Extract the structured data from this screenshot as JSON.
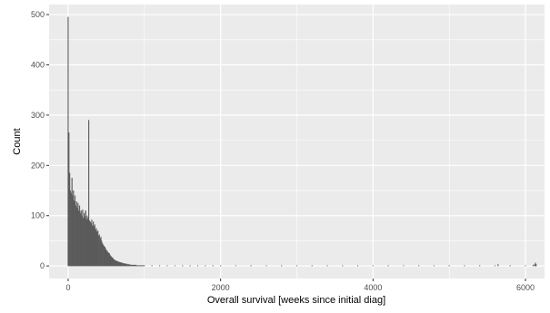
{
  "chart_data": {
    "type": "bar",
    "title": "",
    "xlabel": "Overall survival [weeks since initial diag]",
    "ylabel": "Count",
    "xlim": [
      -250,
      6250
    ],
    "ylim": [
      -25,
      520
    ],
    "x_ticks": [
      0,
      2000,
      4000,
      6000
    ],
    "x_tick_labels": [
      "0",
      "2000",
      "4000",
      "6000"
    ],
    "y_ticks": [
      0,
      100,
      200,
      300,
      400,
      500
    ],
    "y_tick_labels": [
      "0",
      "100",
      "200",
      "300",
      "400",
      "500"
    ],
    "bin_width": 10,
    "grid": true,
    "background": "#ebebeb",
    "grid_color": "#ffffff",
    "bar_color": "#595959",
    "bins": [
      [
        0,
        495
      ],
      [
        10,
        265
      ],
      [
        20,
        185
      ],
      [
        30,
        150
      ],
      [
        40,
        145
      ],
      [
        50,
        175
      ],
      [
        60,
        140
      ],
      [
        70,
        150
      ],
      [
        80,
        130
      ],
      [
        90,
        140
      ],
      [
        100,
        120
      ],
      [
        110,
        128
      ],
      [
        120,
        115
      ],
      [
        130,
        125
      ],
      [
        140,
        110
      ],
      [
        150,
        120
      ],
      [
        160,
        105
      ],
      [
        170,
        110
      ],
      [
        180,
        100
      ],
      [
        190,
        112
      ],
      [
        200,
        95
      ],
      [
        210,
        105
      ],
      [
        220,
        98
      ],
      [
        230,
        110
      ],
      [
        240,
        92
      ],
      [
        250,
        100
      ],
      [
        260,
        95
      ],
      [
        270,
        290
      ],
      [
        280,
        90
      ],
      [
        290,
        88
      ],
      [
        300,
        85
      ],
      [
        310,
        92
      ],
      [
        320,
        80
      ],
      [
        330,
        88
      ],
      [
        340,
        78
      ],
      [
        350,
        82
      ],
      [
        360,
        72
      ],
      [
        370,
        75
      ],
      [
        380,
        68
      ],
      [
        390,
        70
      ],
      [
        400,
        60
      ],
      [
        410,
        62
      ],
      [
        420,
        55
      ],
      [
        430,
        58
      ],
      [
        440,
        50
      ],
      [
        450,
        45
      ],
      [
        460,
        42
      ],
      [
        470,
        40
      ],
      [
        480,
        38
      ],
      [
        490,
        35
      ],
      [
        500,
        32
      ],
      [
        510,
        30
      ],
      [
        520,
        28
      ],
      [
        530,
        26
      ],
      [
        540,
        25
      ],
      [
        550,
        22
      ],
      [
        560,
        20
      ],
      [
        570,
        18
      ],
      [
        580,
        16
      ],
      [
        590,
        15
      ],
      [
        600,
        13
      ],
      [
        610,
        12
      ],
      [
        620,
        11
      ],
      [
        630,
        10
      ],
      [
        640,
        10
      ],
      [
        650,
        9
      ],
      [
        660,
        8
      ],
      [
        670,
        8
      ],
      [
        680,
        7
      ],
      [
        690,
        7
      ],
      [
        700,
        6
      ],
      [
        710,
        6
      ],
      [
        720,
        5
      ],
      [
        730,
        5
      ],
      [
        740,
        5
      ],
      [
        750,
        4
      ],
      [
        760,
        4
      ],
      [
        770,
        4
      ],
      [
        780,
        3
      ],
      [
        790,
        3
      ],
      [
        800,
        3
      ],
      [
        810,
        3
      ],
      [
        820,
        2
      ],
      [
        830,
        2
      ],
      [
        840,
        2
      ],
      [
        850,
        2
      ],
      [
        860,
        2
      ],
      [
        870,
        2
      ],
      [
        880,
        2
      ],
      [
        890,
        2
      ],
      [
        900,
        1
      ],
      [
        910,
        1
      ],
      [
        920,
        1
      ],
      [
        930,
        1
      ],
      [
        940,
        1
      ],
      [
        950,
        1
      ],
      [
        960,
        1
      ],
      [
        970,
        1
      ],
      [
        980,
        1
      ],
      [
        990,
        1
      ],
      [
        1000,
        1
      ],
      [
        1100,
        1
      ],
      [
        1200,
        1
      ],
      [
        1300,
        1
      ],
      [
        1400,
        1
      ],
      [
        1500,
        1
      ],
      [
        1600,
        1
      ],
      [
        1700,
        1
      ],
      [
        1800,
        1
      ],
      [
        1900,
        1
      ],
      [
        2000,
        1
      ],
      [
        2200,
        1
      ],
      [
        2400,
        1
      ],
      [
        2600,
        1
      ],
      [
        2800,
        1
      ],
      [
        3000,
        1
      ],
      [
        3200,
        1
      ],
      [
        3400,
        1
      ],
      [
        3600,
        1
      ],
      [
        3800,
        1
      ],
      [
        4000,
        1
      ],
      [
        4200,
        1
      ],
      [
        4400,
        1
      ],
      [
        4600,
        1
      ],
      [
        4800,
        1
      ],
      [
        5000,
        1
      ],
      [
        5200,
        1
      ],
      [
        5400,
        1
      ],
      [
        5600,
        1
      ],
      [
        5640,
        3
      ],
      [
        5800,
        1
      ],
      [
        6000,
        1
      ],
      [
        6100,
        2
      ],
      [
        6120,
        3
      ],
      [
        6130,
        6
      ],
      [
        6140,
        3
      ]
    ]
  }
}
